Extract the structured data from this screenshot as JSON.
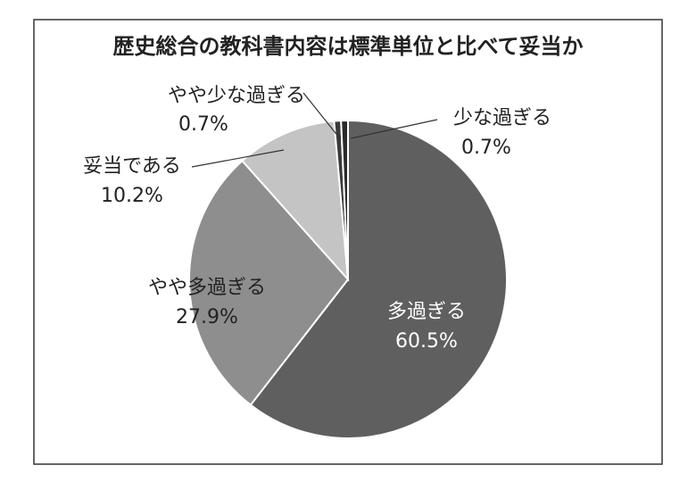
{
  "chart_data": {
    "type": "pie",
    "title": "歴史総合の教科書内容は標準単位と比べて妥当か",
    "categories": [
      "多過ぎる",
      "やや多過ぎる",
      "妥当である",
      "やや少な過ぎる",
      "少な過ぎる"
    ],
    "values": [
      60.5,
      27.9,
      10.2,
      0.7,
      0.7
    ],
    "value_labels": [
      "60.5%",
      "27.9%",
      "10.2%",
      "0.7%",
      "0.7%"
    ],
    "colors": [
      "#5f5f5f",
      "#8e8e8e",
      "#c4c4c4",
      "#3a3a3a",
      "#2a2a2a"
    ]
  }
}
